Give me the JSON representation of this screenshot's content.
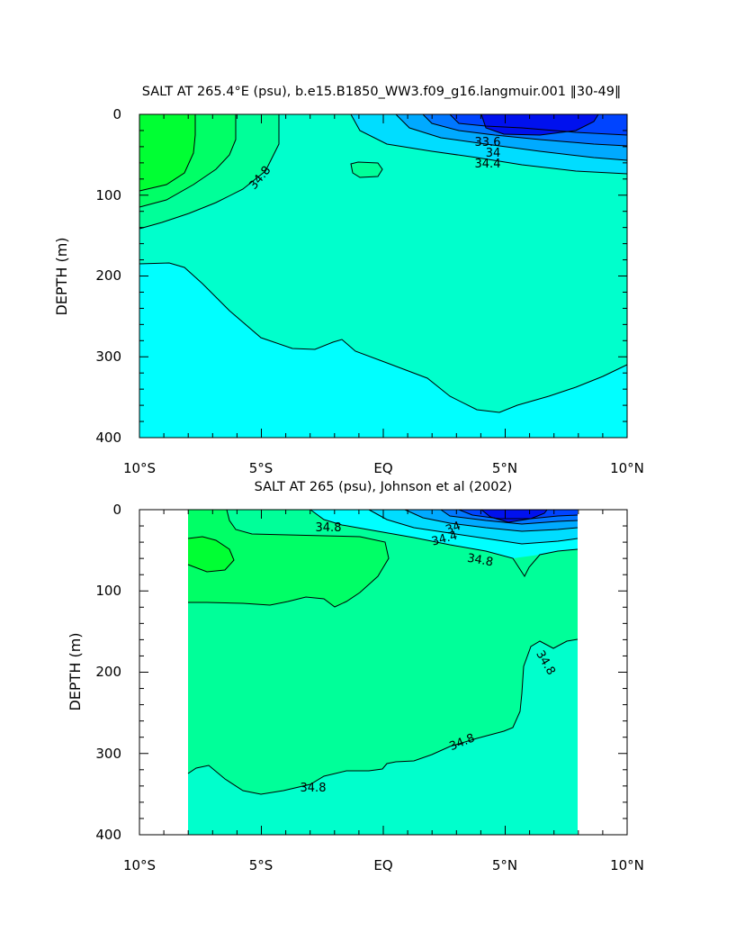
{
  "chart_data": [
    {
      "type": "contour",
      "title": "SALT AT 265.4°E (psu), b.e15.B1850_WW3.f09_g16.langmuir.001 ‖30-49‖",
      "xlabel": "",
      "ylabel": "DEPTH (m)",
      "xlim": [
        -10,
        10
      ],
      "ylim": [
        400,
        0
      ],
      "x_ticks": [
        "10°S",
        "5°S",
        "EQ",
        "5°N",
        "10°N"
      ],
      "y_ticks": [
        "0",
        "100",
        "200",
        "300",
        "400"
      ],
      "contour_labels": [
        "34.8",
        "33.6",
        "34",
        "34.4"
      ],
      "colors": {
        "low": "#0000ff",
        "mid": "#00ffff",
        "high": "#00ff33"
      }
    },
    {
      "type": "contour",
      "title": "SALT AT 265 (psu), Johnson et al (2002)",
      "xlabel": "",
      "ylabel": "DEPTH (m)",
      "xlim": [
        -10,
        10
      ],
      "ylim": [
        400,
        0
      ],
      "x_ticks": [
        "10°S",
        "5°S",
        "EQ",
        "5°N",
        "10°N"
      ],
      "y_ticks": [
        "0",
        "100",
        "200",
        "300",
        "400"
      ],
      "contour_labels": [
        "34.8",
        "34",
        "34.4",
        "34.8",
        "34.8",
        "34.8",
        "34.8"
      ],
      "colors": {
        "low": "#0000ff",
        "mid": "#00ffcc",
        "high": "#00ff33"
      }
    }
  ]
}
